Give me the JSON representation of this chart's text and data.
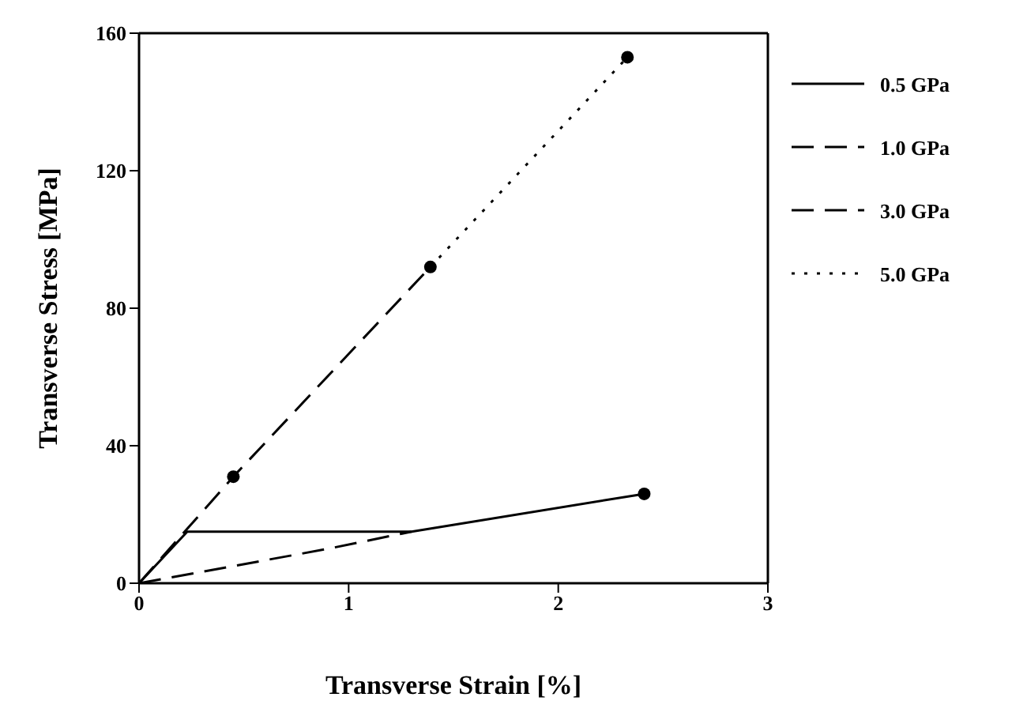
{
  "chart_data": {
    "type": "line",
    "xlabel": "Transverse Strain [%]",
    "ylabel": "Transverse Stress [MPa]",
    "xlim": [
      0,
      3
    ],
    "xticks": [
      0,
      1,
      2,
      3
    ],
    "ylim": [
      0,
      160
    ],
    "yticks": [
      0,
      40,
      80,
      120,
      160
    ],
    "legend": "right",
    "marker": "none",
    "series": [
      {
        "name": "0.5 GPa",
        "color": "#000000",
        "line_style": "solid",
        "x": [
          0,
          0.23,
          1.3,
          2.41
        ],
        "values": [
          0,
          15,
          15,
          26
        ]
      },
      {
        "name": "1.0 GPa",
        "color": "#000000",
        "line_style": "dashed",
        "x": [
          0,
          0.45,
          0.9,
          1.3
        ],
        "values": [
          0,
          5,
          10,
          15
        ]
      },
      {
        "name": "3.0 GPa",
        "color": "#000000",
        "line_style": "dashed",
        "x": [
          0,
          0.45,
          1.39
        ],
        "values": [
          0,
          31,
          92
        ]
      },
      {
        "name": "5.0 GPa",
        "color": "#000000",
        "line_style": "dotted",
        "x": [
          1.39,
          2.33
        ],
        "values": [
          92,
          153
        ]
      },
      {
        "type": "scatter",
        "color": "#000000",
        "marker": "circle",
        "x": [
          0.45,
          1.39,
          2.33,
          2.41
        ],
        "values": [
          31,
          92,
          153,
          26
        ]
      }
    ]
  }
}
